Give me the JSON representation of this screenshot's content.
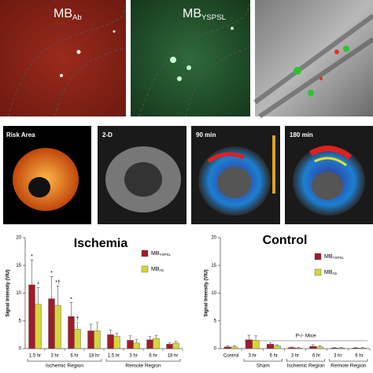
{
  "panels": {
    "top": [
      {
        "label": "MB",
        "sub": "Ab"
      },
      {
        "label": "MB",
        "sub": "YSPSL"
      }
    ],
    "middle": [
      "Risk Area",
      "2-D",
      "90 min",
      "180 min"
    ]
  },
  "chart_data": [
    {
      "type": "bar",
      "title": "Ischemia",
      "y_label": "Signal Intensity (VIU)",
      "groups": [
        {
          "label": "Ischemic Region",
          "categories": [
            "1.5 hr",
            "3 hr",
            "6 hr",
            "18 hr"
          ]
        },
        {
          "label": "Remote Region",
          "categories": [
            "1.5 hr",
            "3 hr",
            "6 hr",
            "18 hr"
          ]
        }
      ],
      "series": [
        {
          "name": "MB",
          "subscript": "YSPSL",
          "color": "#a01c2b",
          "values": [
            11.5,
            9,
            5.8,
            3.2,
            2.5,
            1.5,
            1.6,
            0.8
          ],
          "errors": [
            4.5,
            4,
            2.5,
            1.2,
            0.8,
            0.8,
            0.6,
            0.3
          ],
          "marks": [
            "*",
            "*",
            "*",
            null,
            null,
            null,
            null,
            null
          ]
        },
        {
          "name": "MB",
          "subscript": "Ab",
          "color": "#d4d63a",
          "values": [
            8,
            7.8,
            3.5,
            3.2,
            2.2,
            1,
            1.8,
            1
          ],
          "errors": [
            3,
            3.5,
            1.2,
            1.5,
            0.6,
            0.6,
            0.6,
            0.3
          ],
          "marks": [
            "*",
            "*†",
            "†",
            null,
            null,
            null,
            null,
            null
          ]
        }
      ],
      "ylim": [
        0,
        20
      ],
      "yticks": [
        0,
        5,
        10,
        15,
        20
      ]
    },
    {
      "type": "bar",
      "title": "Control",
      "y_label": "Signal Intensity (VIU)",
      "annotation": "P-/- Mice",
      "groups": [
        {
          "label": null,
          "categories": [
            "Control"
          ]
        },
        {
          "label": "Sham",
          "categories": [
            "3 hr",
            "6 hr"
          ]
        },
        {
          "label": "Ischemic Region",
          "categories": [
            "3 hr",
            "6 hr"
          ]
        },
        {
          "label": "Remote Region",
          "categories": [
            "3 hr",
            "6 hr"
          ]
        }
      ],
      "series": [
        {
          "name": "MB",
          "subscript": "YSPSL",
          "color": "#a01c2b",
          "values": [
            0.3,
            1.6,
            0.8,
            0.2,
            0.4,
            0.1,
            0.1
          ],
          "errors": [
            0.2,
            0.8,
            0.3,
            0.1,
            0.3,
            0.1,
            0.1
          ]
        },
        {
          "name": "MB",
          "subscript": "Ab",
          "color": "#d4d63a",
          "values": [
            0.3,
            1.5,
            0.5,
            0.1,
            0.3,
            0.1,
            0.1
          ],
          "errors": [
            0.2,
            0.8,
            0.2,
            0.1,
            0.2,
            0.1,
            0.1
          ]
        }
      ],
      "ylim": [
        0,
        20
      ],
      "yticks": [
        0,
        5,
        10,
        15,
        20
      ]
    }
  ]
}
